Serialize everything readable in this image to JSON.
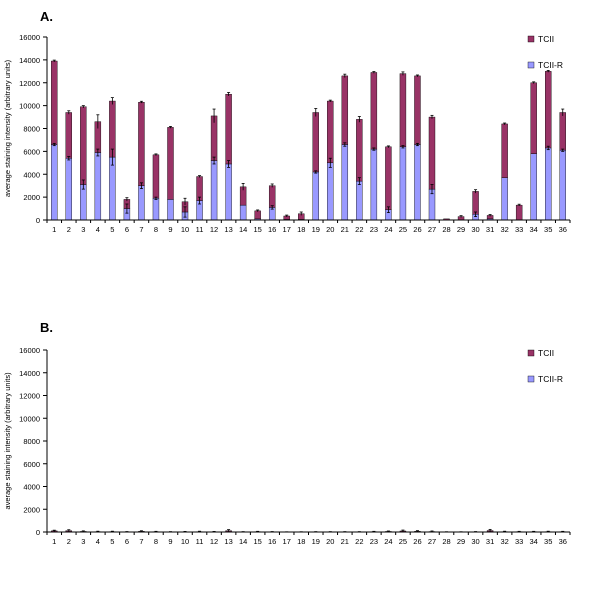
{
  "colors": {
    "tcii": "#993366",
    "tcii_r": "#9999ff",
    "axis": "#000000"
  },
  "chart_data": [
    {
      "panel_label": "A.",
      "type": "bar",
      "stacked": true,
      "ylabel": "average staining intensity (arbitrary units)",
      "xlabel": "",
      "ylim": [
        0,
        16000
      ],
      "yticks": [
        0,
        2000,
        4000,
        6000,
        8000,
        10000,
        12000,
        14000,
        16000
      ],
      "categories": [
        "1",
        "2",
        "3",
        "4",
        "5",
        "6",
        "7",
        "8",
        "9",
        "10",
        "11",
        "12",
        "13",
        "14",
        "15",
        "16",
        "17",
        "18",
        "19",
        "20",
        "21",
        "22",
        "23",
        "24",
        "25",
        "26",
        "27",
        "28",
        "29",
        "30",
        "31",
        "32",
        "33",
        "34",
        "35",
        "36"
      ],
      "legend": {
        "placement": "top-right",
        "entries": [
          "TCII",
          "TCII-R"
        ]
      },
      "series": [
        {
          "name": "TCII-R",
          "color": "#9999ff",
          "values": [
            6600,
            5400,
            3100,
            5900,
            5500,
            1000,
            3000,
            1900,
            1800,
            700,
            1700,
            5200,
            4900,
            1300,
            100,
            1100,
            50,
            50,
            4200,
            5000,
            6600,
            3400,
            6200,
            900,
            6400,
            6600,
            2700,
            0,
            0,
            500,
            100,
            3700,
            0,
            5800,
            6300,
            6100
          ],
          "errors": [
            100,
            150,
            400,
            300,
            700,
            400,
            250,
            100,
            0,
            450,
            300,
            300,
            300,
            0,
            0,
            150,
            0,
            0,
            100,
            400,
            150,
            300,
            100,
            250,
            100,
            100,
            400,
            0,
            0,
            200,
            0,
            0,
            0,
            0,
            150,
            100
          ]
        },
        {
          "name": "TCII",
          "color": "#993366",
          "values": [
            7300,
            4000,
            6800,
            2700,
            4900,
            800,
            7300,
            3800,
            6300,
            900,
            2100,
            3900,
            6100,
            1600,
            700,
            1900,
            300,
            500,
            5200,
            5400,
            6000,
            5400,
            6700,
            5500,
            6400,
            6000,
            6300,
            100,
            300,
            2000,
            300,
            4700,
            1300,
            6200,
            6700,
            3300
          ],
          "errors": [
            80,
            150,
            100,
            600,
            300,
            150,
            80,
            80,
            80,
            300,
            80,
            600,
            150,
            300,
            80,
            150,
            80,
            150,
            350,
            80,
            150,
            250,
            80,
            80,
            150,
            80,
            150,
            0,
            80,
            150,
            80,
            80,
            80,
            80,
            80,
            300
          ]
        }
      ]
    },
    {
      "panel_label": "B.",
      "type": "bar",
      "stacked": true,
      "ylabel": "average staining intensity (arbitrary units)",
      "xlabel": "",
      "ylim": [
        0,
        16000
      ],
      "yticks": [
        0,
        2000,
        4000,
        6000,
        8000,
        10000,
        12000,
        14000,
        16000
      ],
      "categories": [
        "1",
        "2",
        "3",
        "4",
        "5",
        "6",
        "7",
        "8",
        "9",
        "10",
        "11",
        "12",
        "13",
        "14",
        "15",
        "16",
        "17",
        "18",
        "19",
        "20",
        "21",
        "22",
        "23",
        "24",
        "25",
        "26",
        "27",
        "28",
        "29",
        "30",
        "31",
        "32",
        "33",
        "34",
        "35",
        "36"
      ],
      "legend": {
        "placement": "top-right",
        "entries": [
          "TCII",
          "TCII-R"
        ]
      },
      "series": [
        {
          "name": "TCII-R",
          "color": "#9999ff",
          "values": [
            30,
            40,
            20,
            10,
            10,
            10,
            20,
            10,
            5,
            10,
            10,
            10,
            40,
            5,
            10,
            10,
            5,
            5,
            5,
            5,
            5,
            5,
            10,
            20,
            30,
            20,
            10,
            5,
            5,
            10,
            40,
            10,
            10,
            10,
            10,
            10
          ],
          "errors": [
            0,
            0,
            0,
            0,
            0,
            0,
            0,
            0,
            0,
            0,
            0,
            0,
            0,
            0,
            0,
            0,
            0,
            0,
            0,
            0,
            0,
            0,
            0,
            0,
            0,
            0,
            0,
            0,
            0,
            0,
            0,
            0,
            0,
            0,
            0,
            0
          ]
        },
        {
          "name": "TCII",
          "color": "#993366",
          "values": [
            70,
            80,
            30,
            20,
            20,
            10,
            40,
            20,
            10,
            10,
            20,
            10,
            80,
            10,
            20,
            10,
            5,
            10,
            10,
            10,
            10,
            10,
            20,
            30,
            60,
            40,
            30,
            10,
            10,
            10,
            90,
            20,
            20,
            20,
            20,
            20
          ],
          "errors": [
            60,
            80,
            50,
            40,
            40,
            20,
            50,
            30,
            20,
            30,
            40,
            30,
            90,
            20,
            30,
            20,
            10,
            10,
            20,
            20,
            20,
            20,
            30,
            40,
            80,
            60,
            50,
            10,
            10,
            20,
            100,
            40,
            30,
            30,
            40,
            30
          ]
        }
      ]
    }
  ]
}
